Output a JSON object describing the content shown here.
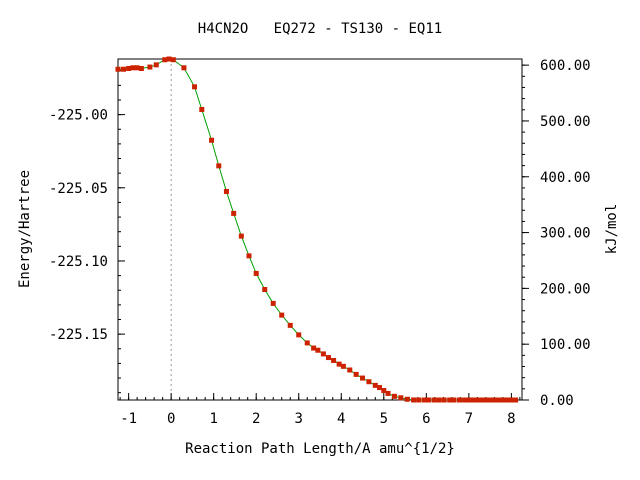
{
  "chart_data": {
    "type": "line",
    "title": "H4CN2O   EQ272 - TS130 - EQ11",
    "xlabel": "Reaction Path Length/A amu^{1/2}",
    "ylabel": "Energy/Hartree",
    "y2label": "kJ/mol",
    "xlim": [
      -1.25,
      8.25
    ],
    "ylim": [
      -225.195,
      -224.962
    ],
    "y2lim": [
      0,
      611
    ],
    "xticks": [
      -1,
      0,
      1,
      2,
      3,
      4,
      5,
      6,
      7,
      8
    ],
    "xtick_labels": [
      "-1",
      "0",
      "1",
      "2",
      "3",
      "4",
      "5",
      "6",
      "7",
      "8"
    ],
    "yticks": [
      -225.0,
      -225.05,
      -225.1,
      -225.15
    ],
    "ytick_labels": [
      "-225.00",
      "-225.05",
      "-225.10",
      "-225.15"
    ],
    "y2ticks": [
      0,
      100,
      200,
      300,
      400,
      500,
      600
    ],
    "y2tick_labels": [
      "0.00",
      "100.00",
      "200.00",
      "300.00",
      "400.00",
      "500.00",
      "600.00"
    ],
    "ts_marker_x": 0,
    "grid": false,
    "series": [
      {
        "color": "#00a000",
        "marker_color": "#cc2200",
        "x": [
          -1.25,
          -1.12,
          -1.0,
          -0.9,
          -0.8,
          -0.7,
          -0.5,
          -0.35,
          -0.15,
          -0.05,
          0.05,
          0.3,
          0.55,
          0.72,
          0.95,
          1.12,
          1.3,
          1.47,
          1.65,
          1.83,
          2.0,
          2.2,
          2.4,
          2.6,
          2.8,
          3.0,
          3.2,
          3.35,
          3.45,
          3.58,
          3.7,
          3.82,
          3.95,
          4.05,
          4.2,
          4.35,
          4.5,
          4.65,
          4.8,
          4.9,
          5.0,
          5.1,
          5.25,
          5.4,
          5.55,
          5.7,
          5.82,
          5.95,
          6.05,
          6.18,
          6.3,
          6.42,
          6.55,
          6.65,
          6.78,
          6.9,
          7.0,
          7.1,
          7.2,
          7.3,
          7.4,
          7.5,
          7.6,
          7.7,
          7.8,
          7.9,
          8.0,
          8.1
        ],
        "y": [
          -224.969,
          -224.969,
          -224.9685,
          -224.968,
          -224.968,
          -224.9685,
          -224.9675,
          -224.966,
          -224.9625,
          -224.962,
          -224.9625,
          -224.968,
          -224.981,
          -224.9965,
          -225.0175,
          -225.035,
          -225.0525,
          -225.0675,
          -225.083,
          -225.0965,
          -225.1085,
          -225.1195,
          -225.129,
          -225.137,
          -225.144,
          -225.1505,
          -225.156,
          -225.1595,
          -225.161,
          -225.1635,
          -225.166,
          -225.168,
          -225.1705,
          -225.172,
          -225.1745,
          -225.1775,
          -225.18,
          -225.1825,
          -225.185,
          -225.1865,
          -225.1885,
          -225.1905,
          -225.1925,
          -225.1935,
          -225.1945,
          -225.1955,
          -225.196,
          -225.1965,
          -225.197,
          -225.1975,
          -225.198,
          -225.1985,
          -225.199,
          -225.199,
          -225.1995,
          -225.1995,
          -225.1995,
          -225.2,
          -225.2,
          -225.2,
          -225.2,
          -225.2,
          -225.2,
          -225.2,
          -225.2,
          -225.2,
          -225.2,
          -225.2
        ]
      }
    ]
  }
}
